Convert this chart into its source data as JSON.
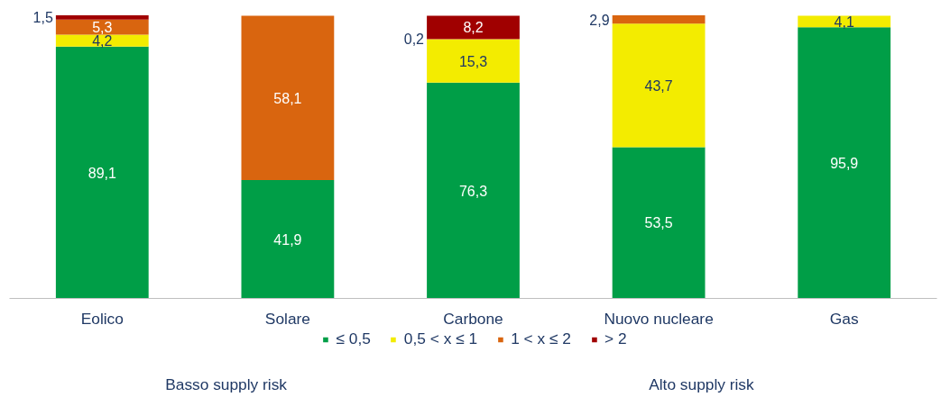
{
  "chart_data": {
    "type": "bar",
    "stacked": true,
    "categories": [
      "Eolico",
      "Solare",
      "Carbone",
      "Nuovo nucleare",
      "Gas"
    ],
    "series": [
      {
        "name": "≤ 0,5",
        "color": "#009e47",
        "values": [
          89.1,
          41.9,
          76.3,
          53.5,
          95.9
        ],
        "value_labels": [
          "89,1",
          "41,9",
          "76,3",
          "53,5",
          "95,9"
        ]
      },
      {
        "name": "0,5 < x ≤ 1",
        "color": "#f3ec00",
        "values": [
          4.2,
          null,
          15.3,
          43.7,
          4.1
        ],
        "value_labels": [
          "4,2",
          null,
          "15,3",
          "43,7",
          "4,1"
        ]
      },
      {
        "name": "1 < x ≤ 2",
        "color": "#d9650f",
        "values": [
          5.3,
          58.1,
          0.2,
          2.9,
          null
        ],
        "value_labels": [
          "5,3",
          "58,1",
          "0,2",
          "2,9",
          null
        ]
      },
      {
        "name": "> 2",
        "color": "#a00000",
        "values": [
          1.5,
          null,
          8.2,
          null,
          null
        ],
        "value_labels": [
          "1,5",
          null,
          "8,2",
          null,
          null
        ]
      }
    ],
    "legend": "bottom",
    "annotations": [
      "Basso supply risk",
      "Alto supply risk"
    ]
  }
}
